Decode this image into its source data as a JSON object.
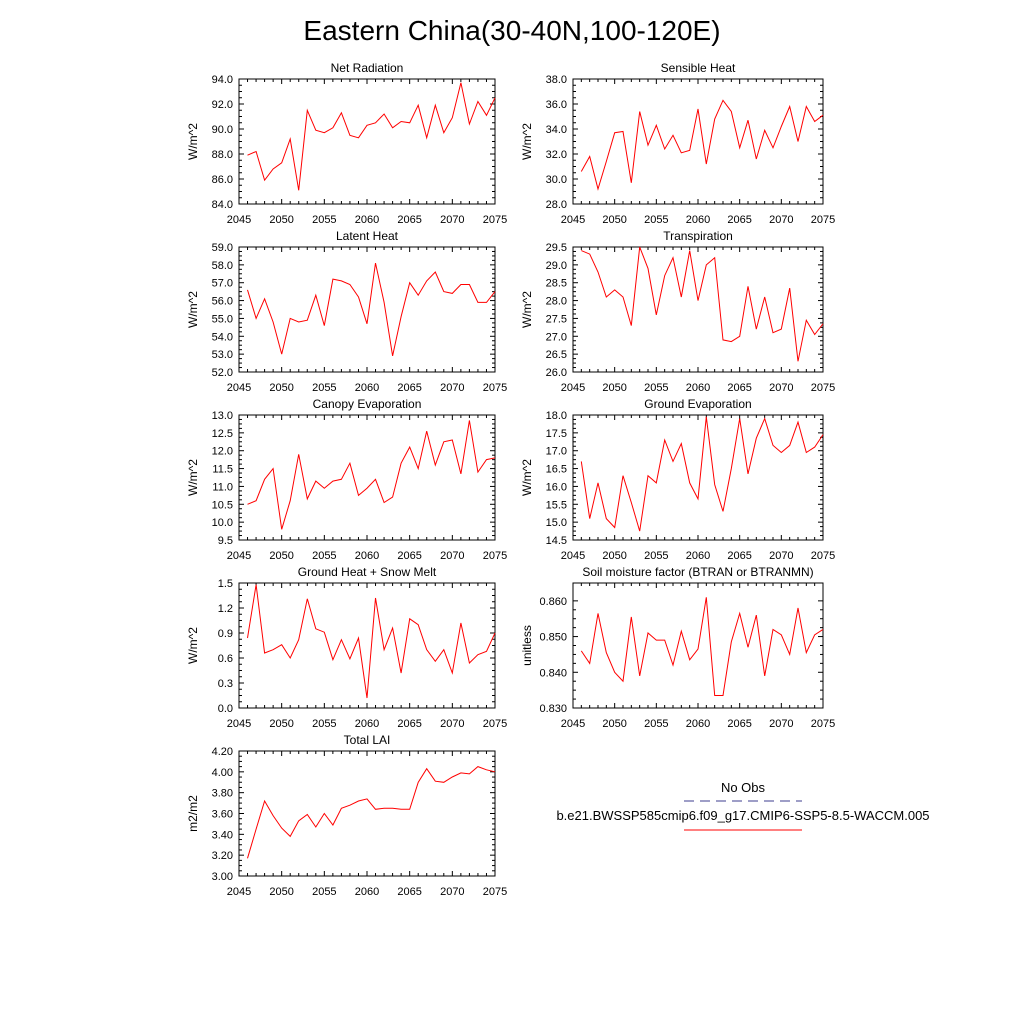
{
  "figure_title": "Eastern China(30-40N,100-120E)",
  "legend": {
    "obs_label": "No Obs",
    "obs_color": "#3d3d8f",
    "model_label": "b.e21.BWSSP585cmip6.f09_g17.CMIP6-SSP5-8.5-WACCM.005",
    "model_color": "#ff0000"
  },
  "chart_data": [
    {
      "type": "line",
      "title": "Net Radiation",
      "xlabel": "",
      "ylabel": "W/m^2",
      "xlim": [
        2045,
        2075
      ],
      "ylim": [
        84.0,
        94.0
      ],
      "yticks": [
        84.0,
        86.0,
        88.0,
        90.0,
        92.0,
        94.0
      ],
      "ytick_decimals": 1,
      "x": [
        2046,
        2047,
        2048,
        2049,
        2050,
        2051,
        2052,
        2053,
        2054,
        2055,
        2056,
        2057,
        2058,
        2059,
        2060,
        2061,
        2062,
        2063,
        2064,
        2065,
        2066,
        2067,
        2068,
        2069,
        2070,
        2071,
        2072,
        2073,
        2074,
        2075
      ],
      "series": [
        {
          "name": "b.e21.BWSSP585cmip6.f09_g17.CMIP6-SSP5-8.5-WACCM.005",
          "values": [
            87.9,
            88.2,
            85.9,
            86.8,
            87.3,
            89.2,
            85.1,
            91.5,
            89.9,
            89.7,
            90.1,
            91.3,
            89.5,
            89.3,
            90.3,
            90.5,
            91.2,
            90.1,
            90.6,
            90.5,
            91.9,
            89.3,
            91.9,
            89.7,
            90.9,
            93.7,
            90.4,
            92.2,
            91.1,
            92.5
          ]
        }
      ]
    },
    {
      "type": "line",
      "title": "Sensible Heat",
      "xlabel": "",
      "ylabel": "W/m^2",
      "xlim": [
        2045,
        2075
      ],
      "ylim": [
        28.0,
        38.0
      ],
      "yticks": [
        28.0,
        30.0,
        32.0,
        34.0,
        36.0,
        38.0
      ],
      "ytick_decimals": 1,
      "x": [
        2046,
        2047,
        2048,
        2049,
        2050,
        2051,
        2052,
        2053,
        2054,
        2055,
        2056,
        2057,
        2058,
        2059,
        2060,
        2061,
        2062,
        2063,
        2064,
        2065,
        2066,
        2067,
        2068,
        2069,
        2070,
        2071,
        2072,
        2073,
        2074,
        2075
      ],
      "series": [
        {
          "name": "b.e21.BWSSP585cmip6.f09_g17.CMIP6-SSP5-8.5-WACCM.005",
          "values": [
            30.6,
            31.8,
            29.2,
            31.4,
            33.7,
            33.8,
            29.7,
            35.4,
            32.7,
            34.3,
            32.4,
            33.5,
            32.1,
            32.3,
            35.6,
            31.2,
            34.8,
            36.3,
            35.4,
            32.5,
            34.7,
            31.6,
            33.9,
            32.5,
            34.2,
            35.8,
            33.0,
            35.8,
            34.6,
            35.1
          ]
        }
      ]
    },
    {
      "type": "line",
      "title": "Latent Heat",
      "xlabel": "",
      "ylabel": "W/m^2",
      "xlim": [
        2045,
        2075
      ],
      "ylim": [
        52.0,
        59.0
      ],
      "yticks": [
        52.0,
        53.0,
        54.0,
        55.0,
        56.0,
        57.0,
        58.0,
        59.0
      ],
      "ytick_decimals": 1,
      "x": [
        2046,
        2047,
        2048,
        2049,
        2050,
        2051,
        2052,
        2053,
        2054,
        2055,
        2056,
        2057,
        2058,
        2059,
        2060,
        2061,
        2062,
        2063,
        2064,
        2065,
        2066,
        2067,
        2068,
        2069,
        2070,
        2071,
        2072,
        2073,
        2074,
        2075
      ],
      "series": [
        {
          "name": "b.e21.BWSSP585cmip6.f09_g17.CMIP6-SSP5-8.5-WACCM.005",
          "values": [
            56.6,
            55.0,
            56.1,
            54.8,
            53.0,
            55.0,
            54.8,
            54.9,
            56.3,
            54.6,
            57.2,
            57.1,
            56.9,
            56.2,
            54.7,
            58.1,
            55.9,
            52.9,
            55.1,
            57.0,
            56.3,
            57.1,
            57.6,
            56.5,
            56.4,
            56.9,
            56.9,
            55.9,
            55.9,
            56.5
          ]
        }
      ]
    },
    {
      "type": "line",
      "title": "Transpiration",
      "xlabel": "",
      "ylabel": "W/m^2",
      "xlim": [
        2045,
        2075
      ],
      "ylim": [
        26.0,
        29.5
      ],
      "yticks": [
        26.0,
        26.5,
        27.0,
        27.5,
        28.0,
        28.5,
        29.0,
        29.5
      ],
      "ytick_decimals": 1,
      "x": [
        2046,
        2047,
        2048,
        2049,
        2050,
        2051,
        2052,
        2053,
        2054,
        2055,
        2056,
        2057,
        2058,
        2059,
        2060,
        2061,
        2062,
        2063,
        2064,
        2065,
        2066,
        2067,
        2068,
        2069,
        2070,
        2071,
        2072,
        2073,
        2074,
        2075
      ],
      "series": [
        {
          "name": "b.e21.BWSSP585cmip6.f09_g17.CMIP6-SSP5-8.5-WACCM.005",
          "values": [
            29.4,
            29.3,
            28.8,
            28.1,
            28.3,
            28.1,
            27.3,
            29.5,
            28.9,
            27.6,
            28.7,
            29.2,
            28.1,
            29.4,
            28.0,
            29.0,
            29.2,
            26.9,
            26.85,
            27.0,
            28.4,
            27.2,
            28.1,
            27.1,
            27.2,
            28.35,
            26.3,
            27.45,
            27.05,
            27.35
          ]
        }
      ]
    },
    {
      "type": "line",
      "title": "Canopy Evaporation",
      "xlabel": "",
      "ylabel": "W/m^2",
      "xlim": [
        2045,
        2075
      ],
      "ylim": [
        9.5,
        13.0
      ],
      "yticks": [
        9.5,
        10.0,
        10.5,
        11.0,
        11.5,
        12.0,
        12.5,
        13.0
      ],
      "ytick_decimals": 1,
      "x": [
        2046,
        2047,
        2048,
        2049,
        2050,
        2051,
        2052,
        2053,
        2054,
        2055,
        2056,
        2057,
        2058,
        2059,
        2060,
        2061,
        2062,
        2063,
        2064,
        2065,
        2066,
        2067,
        2068,
        2069,
        2070,
        2071,
        2072,
        2073,
        2074,
        2075
      ],
      "series": [
        {
          "name": "b.e21.BWSSP585cmip6.f09_g17.CMIP6-SSP5-8.5-WACCM.005",
          "values": [
            10.5,
            10.6,
            11.2,
            11.5,
            9.8,
            10.6,
            11.9,
            10.65,
            11.15,
            10.95,
            11.15,
            11.2,
            11.65,
            10.75,
            10.95,
            11.2,
            10.55,
            10.7,
            11.65,
            12.1,
            11.5,
            12.55,
            11.6,
            12.25,
            12.3,
            11.35,
            12.85,
            11.4,
            11.75,
            11.8
          ]
        }
      ]
    },
    {
      "type": "line",
      "title": "Ground Evaporation",
      "xlabel": "",
      "ylabel": "W/m^2",
      "xlim": [
        2045,
        2075
      ],
      "ylim": [
        14.5,
        18.0
      ],
      "yticks": [
        14.5,
        15.0,
        15.5,
        16.0,
        16.5,
        17.0,
        17.5,
        18.0
      ],
      "ytick_decimals": 1,
      "x": [
        2046,
        2047,
        2048,
        2049,
        2050,
        2051,
        2052,
        2053,
        2054,
        2055,
        2056,
        2057,
        2058,
        2059,
        2060,
        2061,
        2062,
        2063,
        2064,
        2065,
        2066,
        2067,
        2068,
        2069,
        2070,
        2071,
        2072,
        2073,
        2074,
        2075
      ],
      "series": [
        {
          "name": "b.e21.BWSSP585cmip6.f09_g17.CMIP6-SSP5-8.5-WACCM.005",
          "values": [
            16.7,
            15.1,
            16.1,
            15.1,
            14.85,
            16.3,
            15.55,
            14.75,
            16.3,
            16.1,
            17.3,
            16.7,
            17.2,
            16.1,
            15.65,
            17.95,
            16.05,
            15.3,
            16.5,
            17.9,
            16.35,
            17.35,
            17.9,
            17.15,
            16.95,
            17.15,
            17.8,
            16.95,
            17.1,
            17.45
          ]
        }
      ]
    },
    {
      "type": "line",
      "title": "Ground Heat + Snow Melt",
      "xlabel": "",
      "ylabel": "W/m^2",
      "xlim": [
        2045,
        2075
      ],
      "ylim": [
        0.0,
        1.5
      ],
      "yticks": [
        0.0,
        0.3,
        0.6,
        0.9,
        1.2,
        1.5
      ],
      "ytick_decimals": 1,
      "x": [
        2046,
        2047,
        2048,
        2049,
        2050,
        2051,
        2052,
        2053,
        2054,
        2055,
        2056,
        2057,
        2058,
        2059,
        2060,
        2061,
        2062,
        2063,
        2064,
        2065,
        2066,
        2067,
        2068,
        2069,
        2070,
        2071,
        2072,
        2073,
        2074,
        2075
      ],
      "series": [
        {
          "name": "b.e21.BWSSP585cmip6.f09_g17.CMIP6-SSP5-8.5-WACCM.005",
          "values": [
            0.84,
            1.48,
            0.66,
            0.7,
            0.76,
            0.6,
            0.82,
            1.31,
            0.95,
            0.91,
            0.58,
            0.82,
            0.59,
            0.84,
            0.12,
            1.32,
            0.7,
            0.96,
            0.42,
            1.07,
            1.0,
            0.7,
            0.56,
            0.7,
            0.42,
            1.02,
            0.54,
            0.64,
            0.68,
            0.9
          ]
        }
      ]
    },
    {
      "type": "line",
      "title": "Soil moisture factor (BTRAN or BTRANMN)",
      "xlabel": "",
      "ylabel": "unitless",
      "xlim": [
        2045,
        2075
      ],
      "ylim": [
        0.83,
        0.865
      ],
      "yticks": [
        0.83,
        0.84,
        0.85,
        0.86
      ],
      "ytick_decimals": 3,
      "x": [
        2046,
        2047,
        2048,
        2049,
        2050,
        2051,
        2052,
        2053,
        2054,
        2055,
        2056,
        2057,
        2058,
        2059,
        2060,
        2061,
        2062,
        2063,
        2064,
        2065,
        2066,
        2067,
        2068,
        2069,
        2070,
        2071,
        2072,
        2073,
        2074,
        2075
      ],
      "series": [
        {
          "name": "b.e21.BWSSP585cmip6.f09_g17.CMIP6-SSP5-8.5-WACCM.005",
          "values": [
            0.846,
            0.8425,
            0.8565,
            0.8455,
            0.84,
            0.8375,
            0.8555,
            0.839,
            0.851,
            0.849,
            0.849,
            0.842,
            0.8515,
            0.8435,
            0.8465,
            0.861,
            0.8335,
            0.8335,
            0.8485,
            0.8565,
            0.847,
            0.856,
            0.839,
            0.852,
            0.8505,
            0.845,
            0.858,
            0.8455,
            0.8505,
            0.852
          ]
        }
      ]
    },
    {
      "type": "line",
      "title": "Total LAI",
      "xlabel": "",
      "ylabel": "m2/m2",
      "xlim": [
        2045,
        2075
      ],
      "ylim": [
        3.0,
        4.2
      ],
      "yticks": [
        3.0,
        3.2,
        3.4,
        3.6,
        3.8,
        4.0,
        4.2
      ],
      "ytick_decimals": 2,
      "x": [
        2046,
        2047,
        2048,
        2049,
        2050,
        2051,
        2052,
        2053,
        2054,
        2055,
        2056,
        2057,
        2058,
        2059,
        2060,
        2061,
        2062,
        2063,
        2064,
        2065,
        2066,
        2067,
        2068,
        2069,
        2070,
        2071,
        2072,
        2073,
        2074,
        2075
      ],
      "series": [
        {
          "name": "b.e21.BWSSP585cmip6.f09_g17.CMIP6-SSP5-8.5-WACCM.005",
          "values": [
            3.17,
            3.45,
            3.72,
            3.58,
            3.46,
            3.38,
            3.53,
            3.59,
            3.47,
            3.6,
            3.49,
            3.65,
            3.68,
            3.72,
            3.74,
            3.64,
            3.65,
            3.65,
            3.64,
            3.64,
            3.9,
            4.03,
            3.91,
            3.9,
            3.95,
            3.99,
            3.98,
            4.05,
            4.02,
            4.0
          ]
        }
      ]
    }
  ]
}
